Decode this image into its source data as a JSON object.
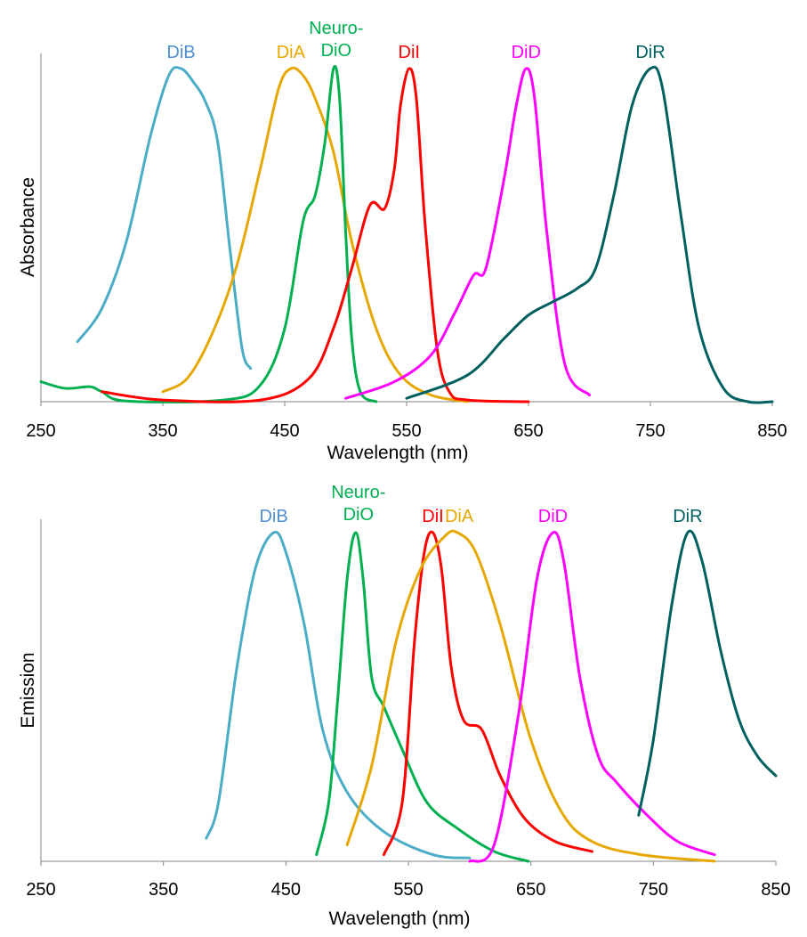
{
  "chart_data": [
    {
      "type": "line",
      "xlabel": "Wavelength (nm)",
      "ylabel": "Absorbance",
      "xlim": [
        250,
        850
      ],
      "ylim": [
        0,
        1
      ],
      "xticks": [
        250,
        350,
        450,
        550,
        650,
        750,
        850
      ],
      "grid": false,
      "series": [
        {
          "name": "DiB",
          "color": "#4bacc6",
          "labelColor": "#4f8fcf",
          "peak": 365,
          "points": [
            [
              280,
              0.18
            ],
            [
              300,
              0.28
            ],
            [
              320,
              0.48
            ],
            [
              340,
              0.8
            ],
            [
              355,
              0.98
            ],
            [
              365,
              1
            ],
            [
              375,
              0.96
            ],
            [
              385,
              0.9
            ],
            [
              395,
              0.78
            ],
            [
              405,
              0.46
            ],
            [
              415,
              0.16
            ],
            [
              422,
              0.1
            ]
          ]
        },
        {
          "name": "DiA",
          "color": "#e6a800",
          "labelColor": "#e6a800",
          "peak": 455,
          "points": [
            [
              350,
              0.03
            ],
            [
              370,
              0.07
            ],
            [
              390,
              0.2
            ],
            [
              410,
              0.4
            ],
            [
              430,
              0.7
            ],
            [
              445,
              0.94
            ],
            [
              455,
              1
            ],
            [
              465,
              0.98
            ],
            [
              475,
              0.91
            ],
            [
              490,
              0.75
            ],
            [
              505,
              0.48
            ],
            [
              525,
              0.22
            ],
            [
              545,
              0.08
            ],
            [
              570,
              0.02
            ],
            [
              600,
              0
            ]
          ]
        },
        {
          "name": "Neuro-DiO",
          "color": "#00b050",
          "labelColor": "#00b050",
          "peak": 490,
          "points": [
            [
              250,
              0.06
            ],
            [
              270,
              0.04
            ],
            [
              290,
              0.045
            ],
            [
              300,
              0.03
            ],
            [
              320,
              0.002
            ],
            [
              400,
              0.005
            ],
            [
              430,
              0.05
            ],
            [
              450,
              0.22
            ],
            [
              465,
              0.54
            ],
            [
              475,
              0.62
            ],
            [
              483,
              0.78
            ],
            [
              490,
              1
            ],
            [
              495,
              0.91
            ],
            [
              500,
              0.51
            ],
            [
              505,
              0.19
            ],
            [
              512,
              0.03
            ],
            [
              525,
              0
            ]
          ]
        },
        {
          "name": "DiI",
          "color": "#ff0000",
          "labelColor": "#ff0000",
          "peak": 552,
          "points": [
            [
              300,
              0.03
            ],
            [
              350,
              0.005
            ],
            [
              430,
              0.005
            ],
            [
              470,
              0.07
            ],
            [
              490,
              0.22
            ],
            [
              505,
              0.4
            ],
            [
              520,
              0.59
            ],
            [
              532,
              0.58
            ],
            [
              540,
              0.7
            ],
            [
              545,
              0.89
            ],
            [
              552,
              1
            ],
            [
              558,
              0.91
            ],
            [
              565,
              0.54
            ],
            [
              575,
              0.16
            ],
            [
              585,
              0.03
            ],
            [
              600,
              0.005
            ],
            [
              650,
              0
            ]
          ]
        },
        {
          "name": "DiD",
          "color": "#ff00ff",
          "labelColor": "#ff00ff",
          "peak": 648,
          "points": [
            [
              500,
              0.01
            ],
            [
              540,
              0.06
            ],
            [
              570,
              0.14
            ],
            [
              590,
              0.27
            ],
            [
              605,
              0.38
            ],
            [
              615,
              0.4
            ],
            [
              630,
              0.67
            ],
            [
              640,
              0.89
            ],
            [
              648,
              1
            ],
            [
              655,
              0.91
            ],
            [
              665,
              0.51
            ],
            [
              680,
              0.11
            ],
            [
              700,
              0.02
            ]
          ]
        },
        {
          "name": "DiR",
          "color": "#006060",
          "labelColor": "#006060",
          "peak": 750,
          "points": [
            [
              550,
              0.01
            ],
            [
              600,
              0.08
            ],
            [
              630,
              0.19
            ],
            [
              650,
              0.26
            ],
            [
              670,
              0.3
            ],
            [
              690,
              0.34
            ],
            [
              705,
              0.4
            ],
            [
              720,
              0.62
            ],
            [
              735,
              0.89
            ],
            [
              750,
              1
            ],
            [
              760,
              0.94
            ],
            [
              775,
              0.56
            ],
            [
              790,
              0.22
            ],
            [
              810,
              0.04
            ],
            [
              830,
              0
            ],
            [
              850,
              0
            ]
          ]
        }
      ]
    },
    {
      "type": "line",
      "xlabel": "Wavelength (nm)",
      "ylabel": "Emission",
      "xlim": [
        250,
        850
      ],
      "ylim": [
        0,
        1
      ],
      "xticks": [
        250,
        350,
        450,
        550,
        650,
        750,
        850
      ],
      "grid": false,
      "series": [
        {
          "name": "DiB",
          "color": "#4bacc6",
          "labelColor": "#4f8fcf",
          "peak": 440,
          "points": [
            [
              385,
              0.07
            ],
            [
              395,
              0.18
            ],
            [
              410,
              0.59
            ],
            [
              425,
              0.89
            ],
            [
              440,
              1
            ],
            [
              450,
              0.94
            ],
            [
              465,
              0.72
            ],
            [
              480,
              0.4
            ],
            [
              500,
              0.21
            ],
            [
              530,
              0.09
            ],
            [
              570,
              0.02
            ],
            [
              600,
              0.01
            ]
          ]
        },
        {
          "name": "Neuro-DiO",
          "color": "#00b050",
          "labelColor": "#00b050",
          "peak": 507,
          "points": [
            [
              475,
              0.02
            ],
            [
              485,
              0.18
            ],
            [
              492,
              0.48
            ],
            [
              500,
              0.86
            ],
            [
              507,
              1
            ],
            [
              513,
              0.86
            ],
            [
              520,
              0.56
            ],
            [
              530,
              0.47
            ],
            [
              545,
              0.34
            ],
            [
              565,
              0.18
            ],
            [
              590,
              0.1
            ],
            [
              620,
              0.03
            ],
            [
              648,
              0
            ]
          ]
        },
        {
          "name": "DiI",
          "color": "#ff0000",
          "labelColor": "#ff0000",
          "peak": 570,
          "points": [
            [
              530,
              0.02
            ],
            [
              545,
              0.18
            ],
            [
              555,
              0.67
            ],
            [
              563,
              0.94
            ],
            [
              570,
              1
            ],
            [
              577,
              0.89
            ],
            [
              585,
              0.59
            ],
            [
              595,
              0.43
            ],
            [
              610,
              0.4
            ],
            [
              625,
              0.26
            ],
            [
              645,
              0.13
            ],
            [
              670,
              0.06
            ],
            [
              700,
              0.03
            ]
          ]
        },
        {
          "name": "DiA",
          "color": "#e6a800",
          "labelColor": "#e6a800",
          "peak": 590,
          "points": [
            [
              500,
              0.05
            ],
            [
              520,
              0.29
            ],
            [
              540,
              0.67
            ],
            [
              560,
              0.89
            ],
            [
              580,
              0.99
            ],
            [
              590,
              1
            ],
            [
              605,
              0.94
            ],
            [
              625,
              0.72
            ],
            [
              650,
              0.37
            ],
            [
              675,
              0.15
            ],
            [
              700,
              0.06
            ],
            [
              740,
              0.02
            ],
            [
              800,
              0
            ]
          ]
        },
        {
          "name": "DiD",
          "color": "#ff00ff",
          "labelColor": "#ff00ff",
          "peak": 668,
          "points": [
            [
              600,
              0
            ],
            [
              620,
              0.05
            ],
            [
              640,
              0.45
            ],
            [
              655,
              0.86
            ],
            [
              668,
              1
            ],
            [
              677,
              0.91
            ],
            [
              690,
              0.56
            ],
            [
              705,
              0.32
            ],
            [
              720,
              0.24
            ],
            [
              745,
              0.14
            ],
            [
              770,
              0.06
            ],
            [
              800,
              0.02
            ]
          ]
        },
        {
          "name": "DiR",
          "color": "#006060",
          "labelColor": "#006060",
          "peak": 778,
          "points": [
            [
              738,
              0.14
            ],
            [
              750,
              0.37
            ],
            [
              765,
              0.78
            ],
            [
              778,
              1
            ],
            [
              790,
              0.91
            ],
            [
              805,
              0.64
            ],
            [
              820,
              0.43
            ],
            [
              835,
              0.32
            ],
            [
              850,
              0.26
            ]
          ]
        }
      ]
    }
  ]
}
